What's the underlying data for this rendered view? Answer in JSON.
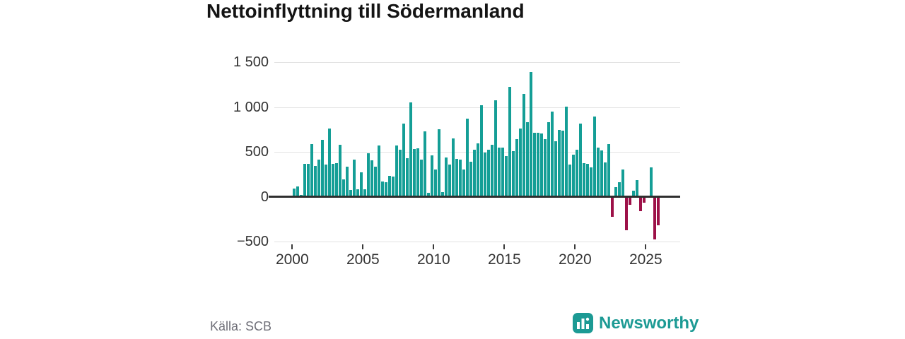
{
  "title": "Nettoinflyttning till Södermanland",
  "source": "Källa: SCB",
  "brand": {
    "name": "Newsworthy",
    "color": "#1c9a94"
  },
  "colors": {
    "positive_bar": "#149e96",
    "negative_bar": "#9d1148",
    "grid": "#e3e3e3",
    "zero_line": "#2e2e2e",
    "axis_text": "#333333",
    "title_text": "#141414",
    "source_text": "#6f6f78"
  },
  "chart_data": {
    "type": "bar",
    "title": "Nettoinflyttning till Södermanland",
    "xlabel": "",
    "ylabel": "",
    "frequency": "quarterly",
    "start_quarter": "2000 Q1",
    "end_quarter": "2025 Q4",
    "ylim": [
      -500,
      1500
    ],
    "grid": true,
    "y_ticks": [
      1500,
      1000,
      500,
      0,
      -500
    ],
    "y_tick_labels": [
      "1 500",
      "1 000",
      "500",
      "0",
      "−500"
    ],
    "x_tick_years": [
      2000,
      2005,
      2010,
      2015,
      2020,
      2025
    ],
    "x_tick_labels": [
      "2000",
      "2005",
      "2010",
      "2015",
      "2020",
      "2025"
    ],
    "values": [
      89,
      115,
      18,
      367,
      367,
      583,
      344,
      412,
      630,
      359,
      761,
      367,
      373,
      575,
      189,
      333,
      76,
      412,
      84,
      268,
      84,
      483,
      405,
      333,
      574,
      166,
      163,
      236,
      228,
      569,
      522,
      813,
      430,
      1050,
      530,
      543,
      412,
      727,
      45,
      464,
      302,
      753,
      52,
      438,
      359,
      648,
      425,
      417,
      307,
      871,
      386,
      522,
      598,
      1018,
      493,
      525,
      577,
      1076,
      546,
      546,
      451,
      1225,
      504,
      638,
      761,
      1147,
      834,
      1391,
      716,
      716,
      708,
      638,
      834,
      950,
      622,
      748,
      740,
      1005,
      359,
      472,
      525,
      813,
      375,
      367,
      328,
      892,
      551,
      517,
      380,
      583,
      -210,
      110,
      163,
      302,
      -360,
      -75,
      66,
      184,
      -146,
      -55,
      0,
      328,
      -465,
      -310
    ]
  }
}
